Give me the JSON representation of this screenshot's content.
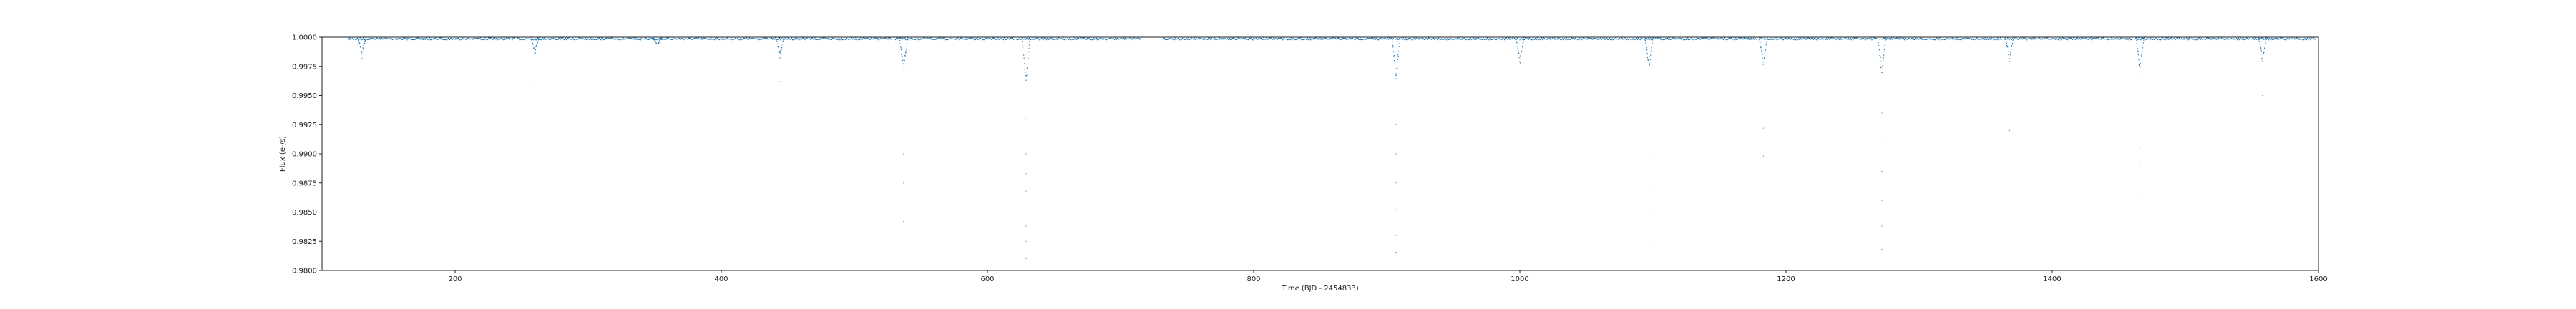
{
  "chart_data": {
    "type": "scatter",
    "title": "",
    "xlabel": "Time (BJD - 2454833)",
    "ylabel": "Flux (e-/s)",
    "xlim": [
      100,
      1600
    ],
    "ylim": [
      0.98,
      1.0
    ],
    "xticks": [
      200,
      400,
      600,
      800,
      1000,
      1200,
      1400,
      1600
    ],
    "xtick_labels": [
      "200",
      "400",
      "600",
      "800",
      "1000",
      "1200",
      "1400",
      "1600"
    ],
    "yticks": [
      0.98,
      0.9825,
      0.985,
      0.9875,
      0.99,
      0.9925,
      0.995,
      0.9975,
      1.0
    ],
    "ytick_labels": [
      "0.9800",
      "0.9825",
      "0.9850",
      "0.9875",
      "0.9900",
      "0.9925",
      "0.9950",
      "0.9975",
      "1.0000"
    ],
    "grid": false,
    "colors": {
      "points": "#1f77b4",
      "axes": "#222222"
    },
    "series": [
      {
        "baseline_segments": [
          [
            120,
            245
          ],
          [
            247,
            340
          ],
          [
            342,
            435
          ],
          [
            437,
            528
          ],
          [
            530,
            620
          ],
          [
            622,
            715
          ],
          [
            732,
            905
          ],
          [
            907,
            998
          ],
          [
            1000,
            1092
          ],
          [
            1094,
            1178
          ],
          [
            1180,
            1268
          ],
          [
            1270,
            1362
          ],
          [
            1364,
            1460
          ],
          [
            1462,
            1548
          ],
          [
            1550,
            1598
          ]
        ],
        "baseline_flux": 0.99995,
        "transits": [
          {
            "time": 130,
            "depth_flux": 0.9985,
            "outlier_flux": [
              0.9982
            ]
          },
          {
            "time": 260,
            "depth_flux": 0.9985,
            "outlier_flux": [
              0.9958
            ]
          },
          {
            "time": 352,
            "depth_flux": 0.9992,
            "outlier_flux": []
          },
          {
            "time": 444,
            "depth_flux": 0.9982,
            "outlier_flux": [
              0.9962
            ]
          },
          {
            "time": 537,
            "depth_flux": 0.9968,
            "outlier_flux": [
              0.99,
              0.9875,
              0.9842
            ]
          },
          {
            "time": 629,
            "depth_flux": 0.9955,
            "outlier_flux": [
              0.993,
              0.99,
              0.9883,
              0.9868,
              0.9838,
              0.9825,
              0.981
            ]
          },
          {
            "time": 907,
            "depth_flux": 0.9958,
            "outlier_flux": [
              0.9925,
              0.99,
              0.9875,
              0.9852,
              0.983,
              0.9815
            ]
          },
          {
            "time": 1000,
            "depth_flux": 0.9975,
            "outlier_flux": []
          },
          {
            "time": 1097,
            "depth_flux": 0.9971,
            "outlier_flux": [
              0.99,
              0.987,
              0.9848,
              0.9826
            ]
          },
          {
            "time": 1183,
            "depth_flux": 0.9975,
            "outlier_flux": [
              0.9922,
              0.9898
            ]
          },
          {
            "time": 1272,
            "depth_flux": 0.9965,
            "outlier_flux": [
              0.9935,
              0.991,
              0.9885,
              0.986,
              0.9838,
              0.9818
            ]
          },
          {
            "time": 1368,
            "depth_flux": 0.9978,
            "outlier_flux": [
              0.992
            ]
          },
          {
            "time": 1466,
            "depth_flux": 0.9968,
            "outlier_flux": [
              0.9905,
              0.989,
              0.9865
            ]
          },
          {
            "time": 1558,
            "depth_flux": 0.9978,
            "outlier_flux": [
              0.995
            ]
          }
        ]
      }
    ]
  }
}
